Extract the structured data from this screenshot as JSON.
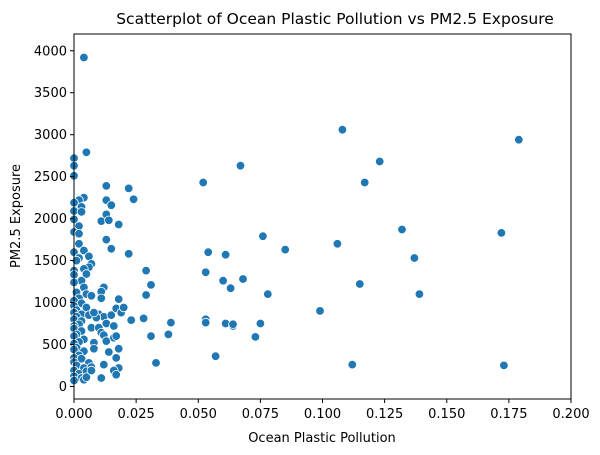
{
  "chart_data": {
    "type": "scatter",
    "title": "Scatterplot of Ocean Plastic Pollution vs PM2.5 Exposure",
    "xlabel": "Ocean Plastic Pollution",
    "ylabel": "PM2.5 Exposure",
    "xlim": [
      0,
      0.2
    ],
    "ylim": [
      -150,
      4200
    ],
    "xticks": [
      "0.000",
      "0.025",
      "0.050",
      "0.075",
      "0.100",
      "0.125",
      "0.150",
      "0.175",
      "0.200"
    ],
    "xtick_values": [
      0,
      0.025,
      0.05,
      0.075,
      0.1,
      0.125,
      0.15,
      0.175,
      0.2
    ],
    "yticks": [
      "0",
      "500",
      "1000",
      "1500",
      "2000",
      "2500",
      "3000",
      "3500",
      "4000"
    ],
    "ytick_values": [
      0,
      500,
      1000,
      1500,
      2000,
      2500,
      3000,
      3500,
      4000
    ],
    "grid": false,
    "marker_color": "#1f77b4",
    "marker_edge_color": "#ffffff",
    "points": [
      [
        0.004,
        3920
      ],
      [
        0.005,
        2790
      ],
      [
        0.0,
        2720
      ],
      [
        0.0,
        2630
      ],
      [
        0.0,
        2510
      ],
      [
        0.004,
        2250
      ],
      [
        0.002,
        2220
      ],
      [
        0.0,
        2190
      ],
      [
        0.003,
        2140
      ],
      [
        0.0,
        2090
      ],
      [
        0.003,
        2080
      ],
      [
        0.0,
        1990
      ],
      [
        0.002,
        1910
      ],
      [
        0.0,
        1840
      ],
      [
        0.002,
        1820
      ],
      [
        0.002,
        1700
      ],
      [
        0.004,
        1620
      ],
      [
        0.0,
        1600
      ],
      [
        0.006,
        1550
      ],
      [
        0.002,
        1530
      ],
      [
        0.001,
        1500
      ],
      [
        0.007,
        1460
      ],
      [
        0.006,
        1420
      ],
      [
        0.004,
        1400
      ],
      [
        0.0,
        1380
      ],
      [
        0.005,
        1340
      ],
      [
        0.0,
        1330
      ],
      [
        0.003,
        1260
      ],
      [
        0.0,
        1240
      ],
      [
        0.004,
        1180
      ],
      [
        0.001,
        1120
      ],
      [
        0.005,
        1100
      ],
      [
        0.007,
        1080
      ],
      [
        0.002,
        1050
      ],
      [
        0.0,
        1020
      ],
      [
        0.003,
        990
      ],
      [
        0.0,
        960
      ],
      [
        0.005,
        940
      ],
      [
        0.001,
        910
      ],
      [
        0.0,
        880
      ],
      [
        0.003,
        860
      ],
      [
        0.001,
        830
      ],
      [
        0.006,
        850
      ],
      [
        0.0,
        800
      ],
      [
        0.003,
        780
      ],
      [
        0.002,
        740
      ],
      [
        0.0,
        720
      ],
      [
        0.007,
        700
      ],
      [
        0.0,
        690
      ],
      [
        0.003,
        660
      ],
      [
        0.001,
        620
      ],
      [
        0.0,
        600
      ],
      [
        0.004,
        560
      ],
      [
        0.002,
        530
      ],
      [
        0.0,
        510
      ],
      [
        0.008,
        520
      ],
      [
        0.001,
        460
      ],
      [
        0.0,
        440
      ],
      [
        0.004,
        420
      ],
      [
        0.008,
        450
      ],
      [
        0.002,
        370
      ],
      [
        0.0,
        340
      ],
      [
        0.003,
        330
      ],
      [
        0.0,
        290
      ],
      [
        0.006,
        280
      ],
      [
        0.001,
        250
      ],
      [
        0.004,
        220
      ],
      [
        0.007,
        230
      ],
      [
        0.0,
        190
      ],
      [
        0.002,
        150
      ],
      [
        0.005,
        180
      ],
      [
        0.0,
        120
      ],
      [
        0.003,
        100
      ],
      [
        0.004,
        80
      ],
      [
        0.005,
        110
      ],
      [
        0.007,
        190
      ],
      [
        0.0,
        70
      ],
      [
        0.013,
        2390
      ],
      [
        0.011,
        1970
      ],
      [
        0.013,
        2220
      ],
      [
        0.015,
        2160
      ],
      [
        0.013,
        2050
      ],
      [
        0.014,
        1980
      ],
      [
        0.018,
        1930
      ],
      [
        0.013,
        1750
      ],
      [
        0.015,
        1640
      ],
      [
        0.012,
        1180
      ],
      [
        0.011,
        1130
      ],
      [
        0.011,
        1050
      ],
      [
        0.01,
        860
      ],
      [
        0.012,
        830
      ],
      [
        0.013,
        750
      ],
      [
        0.015,
        850
      ],
      [
        0.016,
        720
      ],
      [
        0.017,
        930
      ],
      [
        0.01,
        700
      ],
      [
        0.011,
        640
      ],
      [
        0.012,
        610
      ],
      [
        0.013,
        540
      ],
      [
        0.016,
        580
      ],
      [
        0.018,
        1040
      ],
      [
        0.017,
        600
      ],
      [
        0.018,
        450
      ],
      [
        0.014,
        410
      ],
      [
        0.017,
        340
      ],
      [
        0.012,
        260
      ],
      [
        0.018,
        220
      ],
      [
        0.016,
        190
      ],
      [
        0.017,
        140
      ],
      [
        0.011,
        100
      ],
      [
        0.009,
        820
      ],
      [
        0.008,
        880
      ],
      [
        0.019,
        880
      ],
      [
        0.022,
        2360
      ],
      [
        0.024,
        2230
      ],
      [
        0.022,
        1580
      ],
      [
        0.029,
        1380
      ],
      [
        0.031,
        1210
      ],
      [
        0.029,
        1090
      ],
      [
        0.02,
        940
      ],
      [
        0.023,
        790
      ],
      [
        0.028,
        810
      ],
      [
        0.031,
        600
      ],
      [
        0.033,
        280
      ],
      [
        0.039,
        760
      ],
      [
        0.038,
        620
      ],
      [
        0.052,
        2430
      ],
      [
        0.054,
        1600
      ],
      [
        0.053,
        1360
      ],
      [
        0.053,
        800
      ],
      [
        0.053,
        760
      ],
      [
        0.057,
        360
      ],
      [
        0.061,
        1570
      ],
      [
        0.06,
        1260
      ],
      [
        0.061,
        750
      ],
      [
        0.064,
        720
      ],
      [
        0.064,
        740
      ],
      [
        0.063,
        1170
      ],
      [
        0.067,
        2630
      ],
      [
        0.068,
        1280
      ],
      [
        0.073,
        590
      ],
      [
        0.075,
        750
      ],
      [
        0.076,
        1790
      ],
      [
        0.078,
        1100
      ],
      [
        0.085,
        1630
      ],
      [
        0.099,
        900
      ],
      [
        0.106,
        1700
      ],
      [
        0.108,
        3060
      ],
      [
        0.112,
        260
      ],
      [
        0.115,
        1220
      ],
      [
        0.117,
        2430
      ],
      [
        0.123,
        2680
      ],
      [
        0.132,
        1870
      ],
      [
        0.137,
        1530
      ],
      [
        0.139,
        1100
      ],
      [
        0.172,
        1830
      ],
      [
        0.173,
        250
      ],
      [
        0.179,
        2940
      ]
    ]
  }
}
